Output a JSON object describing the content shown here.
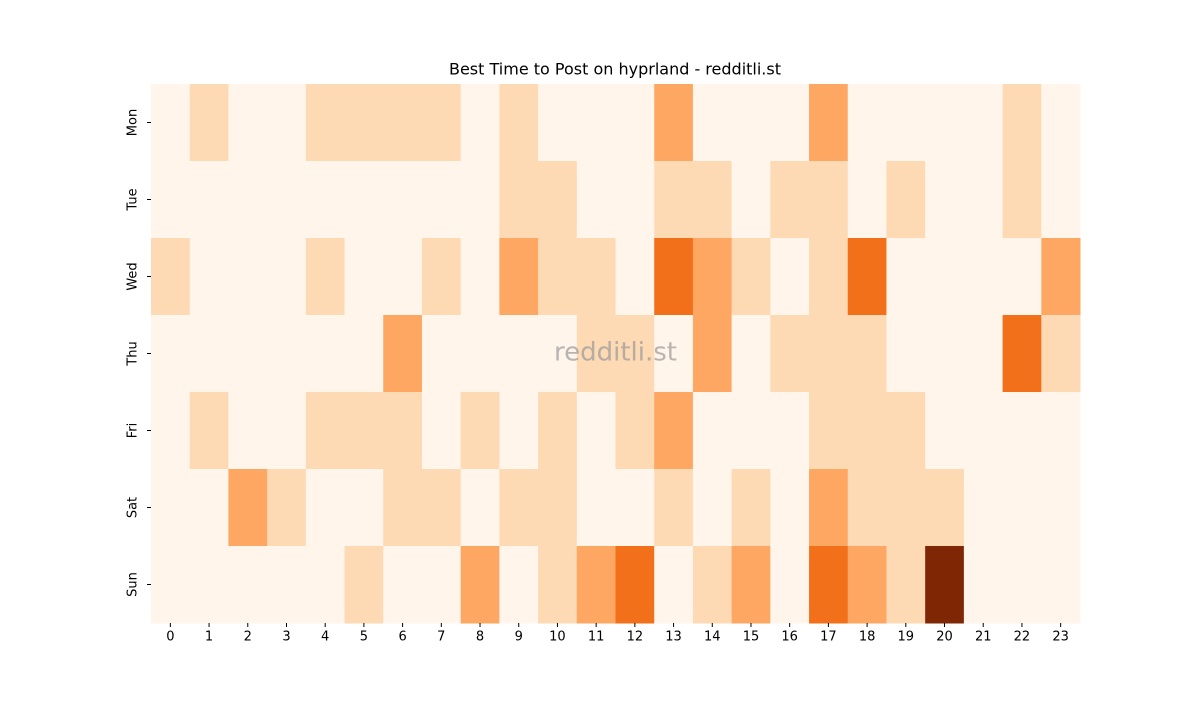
{
  "chart_data": {
    "type": "heatmap",
    "title": "Best Time to Post on hyprland - redditli.st",
    "watermark": "redditli.st",
    "x": [
      0,
      1,
      2,
      3,
      4,
      5,
      6,
      7,
      8,
      9,
      10,
      11,
      12,
      13,
      14,
      15,
      16,
      17,
      18,
      19,
      20,
      21,
      22,
      23
    ],
    "y": [
      "Mon",
      "Tue",
      "Wed",
      "Thu",
      "Fri",
      "Sat",
      "Sun"
    ],
    "values": [
      [
        0,
        1,
        0,
        0,
        1,
        1,
        1,
        1,
        0,
        1,
        0,
        0,
        0,
        2,
        0,
        0,
        0,
        2,
        0,
        0,
        0,
        0,
        1,
        0
      ],
      [
        0,
        0,
        0,
        0,
        0,
        0,
        0,
        0,
        0,
        1,
        1,
        0,
        0,
        1,
        1,
        0,
        1,
        1,
        0,
        1,
        0,
        0,
        1,
        0
      ],
      [
        1,
        0,
        0,
        0,
        1,
        0,
        0,
        1,
        0,
        2,
        1,
        1,
        0,
        3,
        2,
        1,
        0,
        1,
        3,
        0,
        0,
        0,
        0,
        2
      ],
      [
        0,
        0,
        0,
        0,
        0,
        0,
        2,
        0,
        0,
        0,
        0,
        1,
        1,
        0,
        2,
        0,
        1,
        1,
        1,
        0,
        0,
        0,
        3,
        1
      ],
      [
        0,
        1,
        0,
        0,
        1,
        1,
        1,
        0,
        1,
        0,
        1,
        0,
        1,
        2,
        0,
        0,
        0,
        1,
        1,
        1,
        0,
        0,
        0,
        0
      ],
      [
        0,
        0,
        2,
        1,
        0,
        0,
        1,
        1,
        0,
        1,
        1,
        0,
        0,
        1,
        0,
        1,
        0,
        2,
        1,
        1,
        1,
        0,
        0,
        0
      ],
      [
        0,
        0,
        0,
        0,
        0,
        1,
        0,
        0,
        2,
        0,
        1,
        2,
        3,
        0,
        1,
        2,
        0,
        3,
        2,
        1,
        4,
        0,
        0,
        0
      ]
    ],
    "vlim": [
      0,
      4
    ],
    "colormap": [
      "#fff5eb",
      "#fdd9b4",
      "#fda762",
      "#f3701b",
      "#7f2704"
    ]
  }
}
